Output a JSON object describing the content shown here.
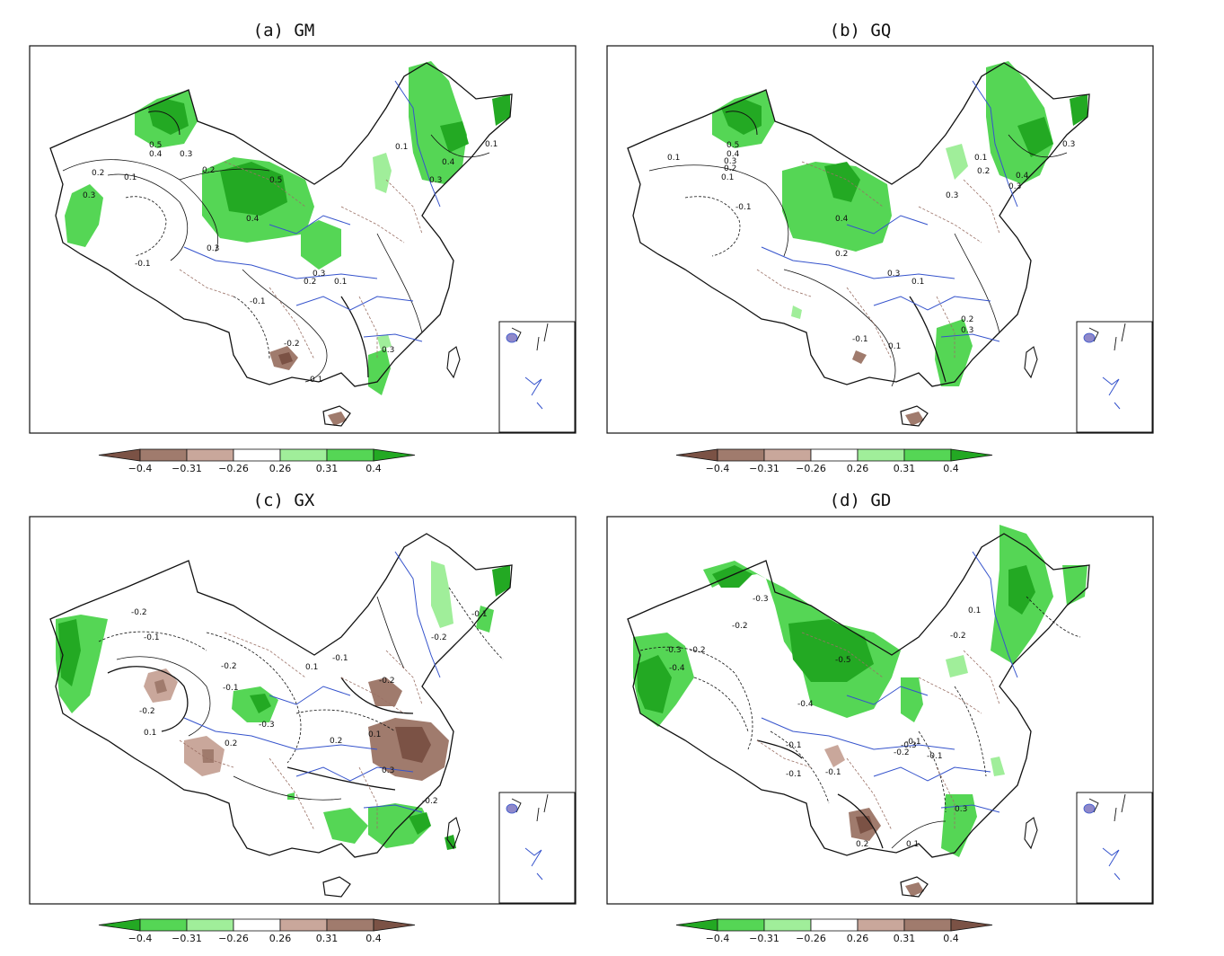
{
  "panels": [
    {
      "title": "(a)  GM",
      "colorbar": {
        "ticks": [
          "−0.4",
          "−0.31",
          "−0.26",
          "0.26",
          "0.31",
          "0.4"
        ],
        "colors": [
          "#7b5245",
          "#a07b6d",
          "#c9a79b",
          "#ffffff",
          "#a0ee9a",
          "#55d655",
          "#23a923"
        ]
      },
      "contour_labels": [
        "0.5",
        "0.4",
        "0.3",
        "0.2",
        "0.1",
        "0.3",
        "0.2",
        "-0.1",
        "0.5",
        "0.4",
        "0.3",
        "0.3",
        "0.1",
        "0.4",
        "0.3",
        "0.2",
        "0.1",
        "-0.1",
        "0.1",
        "-0.2",
        "0.1",
        "0.3"
      ]
    },
    {
      "title": "(b)  GQ",
      "colorbar": {
        "ticks": [
          "−0.4",
          "−0.31",
          "−0.26",
          "0.26",
          "0.31",
          "0.4"
        ],
        "colors": [
          "#7b5245",
          "#a07b6d",
          "#c9a79b",
          "#ffffff",
          "#a0ee9a",
          "#55d655",
          "#23a923"
        ]
      },
      "contour_labels": [
        "0.5",
        "0.4",
        "0.3",
        "0.2",
        "0.1",
        "0.1",
        "-0.1",
        "0.4",
        "0.3",
        "0.1",
        "0.2",
        "0.4",
        "0.3",
        "0.3",
        "0.2",
        "0.1",
        "0.2",
        "0.3",
        "0.1",
        "-0.1",
        "0.3"
      ]
    },
    {
      "title": "(c)  GX",
      "colorbar": {
        "ticks": [
          "−0.4",
          "−0.31",
          "−0.26",
          "0.26",
          "0.31",
          "0.4"
        ],
        "colors": [
          "#23a923",
          "#55d655",
          "#a0ee9a",
          "#ffffff",
          "#c9a79b",
          "#a07b6d",
          "#7b5245"
        ]
      },
      "contour_labels": [
        "-0.2",
        "-0.1",
        "-0.2",
        "-0.1",
        "-0.2",
        "0.1",
        "-0.3",
        "0.2",
        "-0.1",
        "-0.2",
        "0.1",
        "-0.1",
        "-0.2",
        "0.3",
        "0.2",
        "0.1",
        "-0.2"
      ]
    },
    {
      "title": "(d)  GD",
      "colorbar": {
        "ticks": [
          "−0.4",
          "−0.31",
          "−0.26",
          "0.26",
          "0.31",
          "0.4"
        ],
        "colors": [
          "#23a923",
          "#55d655",
          "#a0ee9a",
          "#ffffff",
          "#c9a79b",
          "#a07b6d",
          "#7b5245"
        ]
      },
      "contour_labels": [
        "-0.3",
        "-0.3",
        "-0.2",
        "-0.4",
        "-0.2",
        "-0.5",
        "-0.4",
        "-0.1",
        "-0.1",
        "-0.1",
        "-0.3",
        "-0.1",
        "-0.2",
        "-0.2",
        "0.1",
        "0.3",
        "0.1",
        "-0.1",
        "0.2"
      ]
    }
  ]
}
